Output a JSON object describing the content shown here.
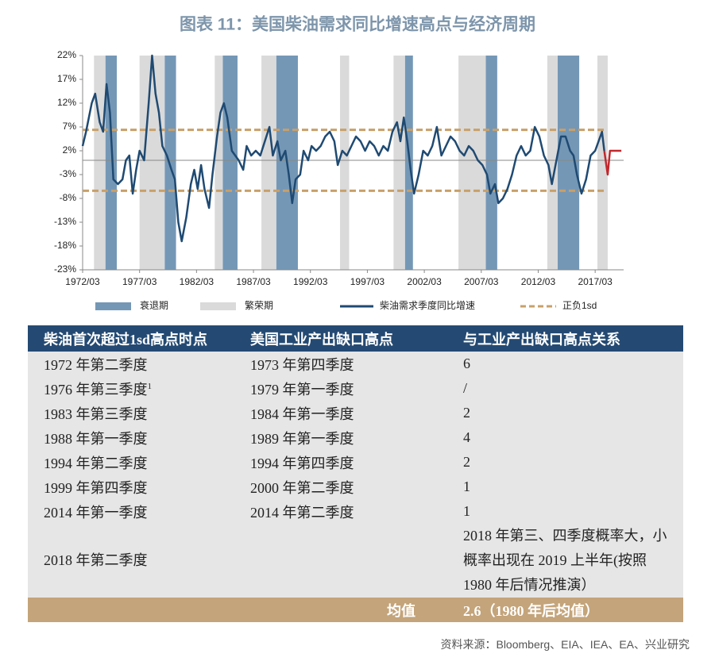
{
  "chart_data": {
    "type": "line",
    "title": "图表 11：美国柴油需求同比增速高点与经济周期",
    "xlim": [
      1972.2,
      2019.7
    ],
    "ylim": [
      -23,
      22
    ],
    "xticks": [
      {
        "value": 1972.2,
        "label": "1972/03"
      },
      {
        "value": 1977.2,
        "label": "1977/03"
      },
      {
        "value": 1982.2,
        "label": "1982/03"
      },
      {
        "value": 1987.2,
        "label": "1987/03"
      },
      {
        "value": 1992.2,
        "label": "1992/03"
      },
      {
        "value": 1997.2,
        "label": "1997/03"
      },
      {
        "value": 2002.2,
        "label": "2002/03"
      },
      {
        "value": 2007.2,
        "label": "2007/03"
      },
      {
        "value": 2012.2,
        "label": "2012/03"
      },
      {
        "value": 2017.2,
        "label": "2017/03"
      }
    ],
    "yticks": [
      {
        "value": 22,
        "label": "22%"
      },
      {
        "value": 17,
        "label": "17%"
      },
      {
        "value": 12,
        "label": "12%"
      },
      {
        "value": 7,
        "label": "7%"
      },
      {
        "value": 2,
        "label": "2%"
      },
      {
        "value": -3,
        "label": "-3%"
      },
      {
        "value": -8,
        "label": "-8%"
      },
      {
        "value": -13,
        "label": "-13%"
      },
      {
        "value": -18,
        "label": "-18%"
      },
      {
        "value": -23,
        "label": "-23%"
      }
    ],
    "bands": [
      {
        "name": "衰退期",
        "color": "#7497b6",
        "spans": [
          [
            1974.2,
            1975.2
          ],
          [
            1979.4,
            1980.4
          ],
          [
            1984.5,
            1985.8
          ],
          [
            1989.2,
            1991.1
          ],
          [
            2000.5,
            2001.2
          ],
          [
            2007.6,
            2008.6
          ],
          [
            2013.9,
            2015.8
          ]
        ]
      },
      {
        "name": "繁荣期",
        "color": "#dadada",
        "spans": [
          [
            1973.2,
            1974.2
          ],
          [
            1977.2,
            1979.4
          ],
          [
            1983.8,
            1984.5
          ],
          [
            1987.9,
            1989.2
          ],
          [
            1994.8,
            1995.6
          ],
          [
            1999.5,
            2000.5
          ],
          [
            2005.2,
            2007.6
          ],
          [
            2013.0,
            2013.9
          ],
          [
            2017.4,
            2018.3
          ]
        ]
      }
    ],
    "series": [
      {
        "name": "柴油需求季度同比增速",
        "color": "#1f4a72",
        "x": [
          1972.2,
          1972.5,
          1973.0,
          1973.3,
          1973.7,
          1974.0,
          1974.3,
          1974.6,
          1974.9,
          1975.3,
          1975.7,
          1976.0,
          1976.3,
          1976.6,
          1976.9,
          1977.2,
          1977.6,
          1978.0,
          1978.3,
          1978.6,
          1978.9,
          1979.2,
          1979.6,
          1980.0,
          1980.3,
          1980.6,
          1980.9,
          1981.3,
          1981.7,
          1982.0,
          1982.3,
          1982.6,
          1982.9,
          1983.3,
          1983.6,
          1984.0,
          1984.3,
          1984.6,
          1984.9,
          1985.3,
          1985.6,
          1985.9,
          1986.3,
          1986.6,
          1987.0,
          1987.4,
          1987.8,
          1988.2,
          1988.6,
          1988.9,
          1989.3,
          1989.6,
          1990.0,
          1990.3,
          1990.6,
          1990.9,
          1991.3,
          1991.6,
          1992.0,
          1992.3,
          1992.7,
          1993.1,
          1993.5,
          1993.9,
          1994.3,
          1994.6,
          1995.0,
          1995.4,
          1995.8,
          1996.2,
          1996.6,
          1997.0,
          1997.4,
          1997.8,
          1998.2,
          1998.6,
          1999.0,
          1999.4,
          1999.8,
          2000.1,
          2000.4,
          2000.7,
          2001.0,
          2001.3,
          2001.7,
          2002.1,
          2002.5,
          2002.9,
          2003.3,
          2003.7,
          2004.1,
          2004.5,
          2004.9,
          2005.3,
          2005.7,
          2006.1,
          2006.5,
          2006.9,
          2007.3,
          2007.7,
          2008.0,
          2008.4,
          2008.7,
          2009.1,
          2009.5,
          2009.9,
          2010.3,
          2010.7,
          2011.1,
          2011.5,
          2011.9,
          2012.3,
          2012.7,
          2013.1,
          2013.4,
          2013.8,
          2014.2,
          2014.6,
          2015.0,
          2015.3,
          2015.6,
          2016.0,
          2016.4,
          2016.8,
          2017.2,
          2017.5,
          2017.8,
          2018.0
        ],
        "values": [
          3,
          6,
          12,
          14,
          8,
          6,
          16,
          10,
          -4,
          -5,
          -4,
          0,
          1,
          -7,
          -2,
          2,
          0,
          12,
          22,
          14,
          10,
          3,
          1,
          -2,
          -4,
          -13,
          -17,
          -12,
          -5,
          -2,
          -6,
          -1,
          -6,
          -10,
          -3,
          5,
          10,
          12,
          9,
          2,
          1,
          0,
          -2,
          3,
          1,
          2,
          1,
          4,
          7,
          1,
          4,
          0,
          2,
          -3,
          -9,
          -4,
          -3,
          2,
          0,
          3,
          2,
          3,
          5,
          6,
          4,
          -1,
          2,
          1,
          3,
          5,
          4,
          2,
          4,
          3,
          1,
          3,
          2,
          6,
          8,
          4,
          9,
          4,
          -2,
          -7,
          -3,
          2,
          1,
          3,
          7,
          1,
          3,
          5,
          4,
          2,
          1,
          3,
          2,
          0,
          -1,
          -3,
          -7,
          -5,
          -9,
          -8,
          -6,
          -3,
          1,
          3,
          1,
          2,
          7,
          5,
          1,
          -1,
          -5,
          0,
          5,
          5,
          2,
          1,
          -3,
          -7,
          -4,
          1,
          2,
          4,
          6,
          2
        ]
      },
      {
        "color": "#c0282d",
        "x": [
          2018.0,
          2018.3,
          2018.5,
          2018.9,
          2019.5
        ],
        "values": [
          2,
          -3,
          2,
          2,
          2
        ]
      }
    ],
    "reference_lines": {
      "name": "正负1sd",
      "color": "#c8a06a",
      "values": [
        6.4,
        -6.4
      ]
    }
  },
  "table": {
    "header": [
      "柴油首次超过1sd高点时点",
      "美国工业产出缺口高点",
      "与工业产出缺口高点关系"
    ],
    "rows": [
      [
        "1972 年第二季度",
        "1973 年第四季度",
        "6"
      ],
      [
        {
          "text": "1976 年第三季度",
          "sup": "1"
        },
        "1979 年第一季度",
        "/"
      ],
      [
        "1983 年第三季度",
        "1984 年第一季度",
        "2"
      ],
      [
        "1988 年第一季度",
        "1989 年第一季度",
        "4"
      ],
      [
        "1994 年第二季度",
        "1994 年第四季度",
        "2"
      ],
      [
        "1999 年第四季度",
        "2000 年第二季度",
        "1"
      ],
      [
        "2014 年第一季度",
        "2014 年第二季度",
        "1"
      ],
      [
        "2018 年第二季度",
        "",
        "2018 年第三、四季度概率大，小概率出现在 2019 上半年(按照 1980 年后情况推演）"
      ]
    ],
    "footer": [
      "均值",
      "2.6（1980 年后均值）"
    ]
  },
  "source": "资料来源：Bloomberg、EIA、IEA、EA、兴业研究"
}
